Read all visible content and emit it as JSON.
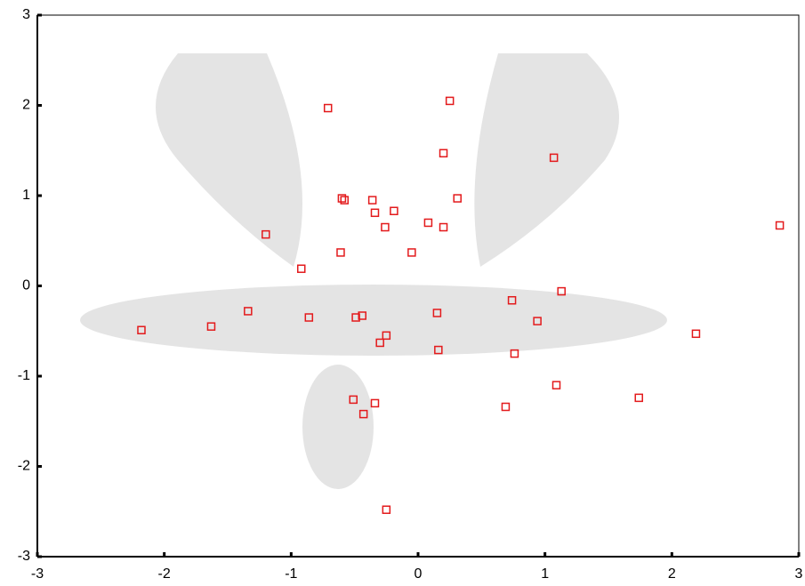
{
  "chart_data": {
    "type": "scatter",
    "series": [
      {
        "color": "#e31a1c",
        "marker": "square",
        "x": [
          -0.71,
          0.25,
          0.2,
          1.07,
          -0.6,
          -0.58,
          -0.36,
          0.31,
          -0.34,
          -0.19,
          0.08,
          -0.26,
          0.2,
          -1.2,
          -0.61,
          -0.05,
          2.85,
          -0.92,
          1.13,
          0.74,
          -1.34,
          -0.86,
          -0.49,
          -0.44,
          0.15,
          0.94,
          -1.63,
          -2.18,
          -0.25,
          -0.3,
          2.19,
          0.16,
          0.76,
          1.09,
          1.74,
          -0.51,
          -0.34,
          -0.43,
          0.69,
          -0.25
        ],
        "y": [
          1.97,
          2.05,
          1.47,
          1.42,
          0.97,
          0.95,
          0.95,
          0.97,
          0.81,
          0.83,
          0.7,
          0.65,
          0.65,
          0.57,
          0.37,
          0.37,
          0.67,
          0.19,
          -0.06,
          -0.16,
          -0.28,
          -0.35,
          -0.35,
          -0.33,
          -0.3,
          -0.39,
          -0.45,
          -0.49,
          -0.55,
          -0.63,
          -0.53,
          -0.71,
          -0.75,
          -1.1,
          -1.24,
          -1.26,
          -1.3,
          -1.42,
          -1.34,
          -2.48
        ]
      }
    ],
    "xlim": [
      -3,
      3
    ],
    "ylim": [
      -3,
      3
    ],
    "xticks": [
      -3,
      -2,
      -1,
      0,
      1,
      2,
      3
    ],
    "yticks": [
      -3,
      -2,
      -1,
      0,
      1,
      2,
      3
    ]
  }
}
